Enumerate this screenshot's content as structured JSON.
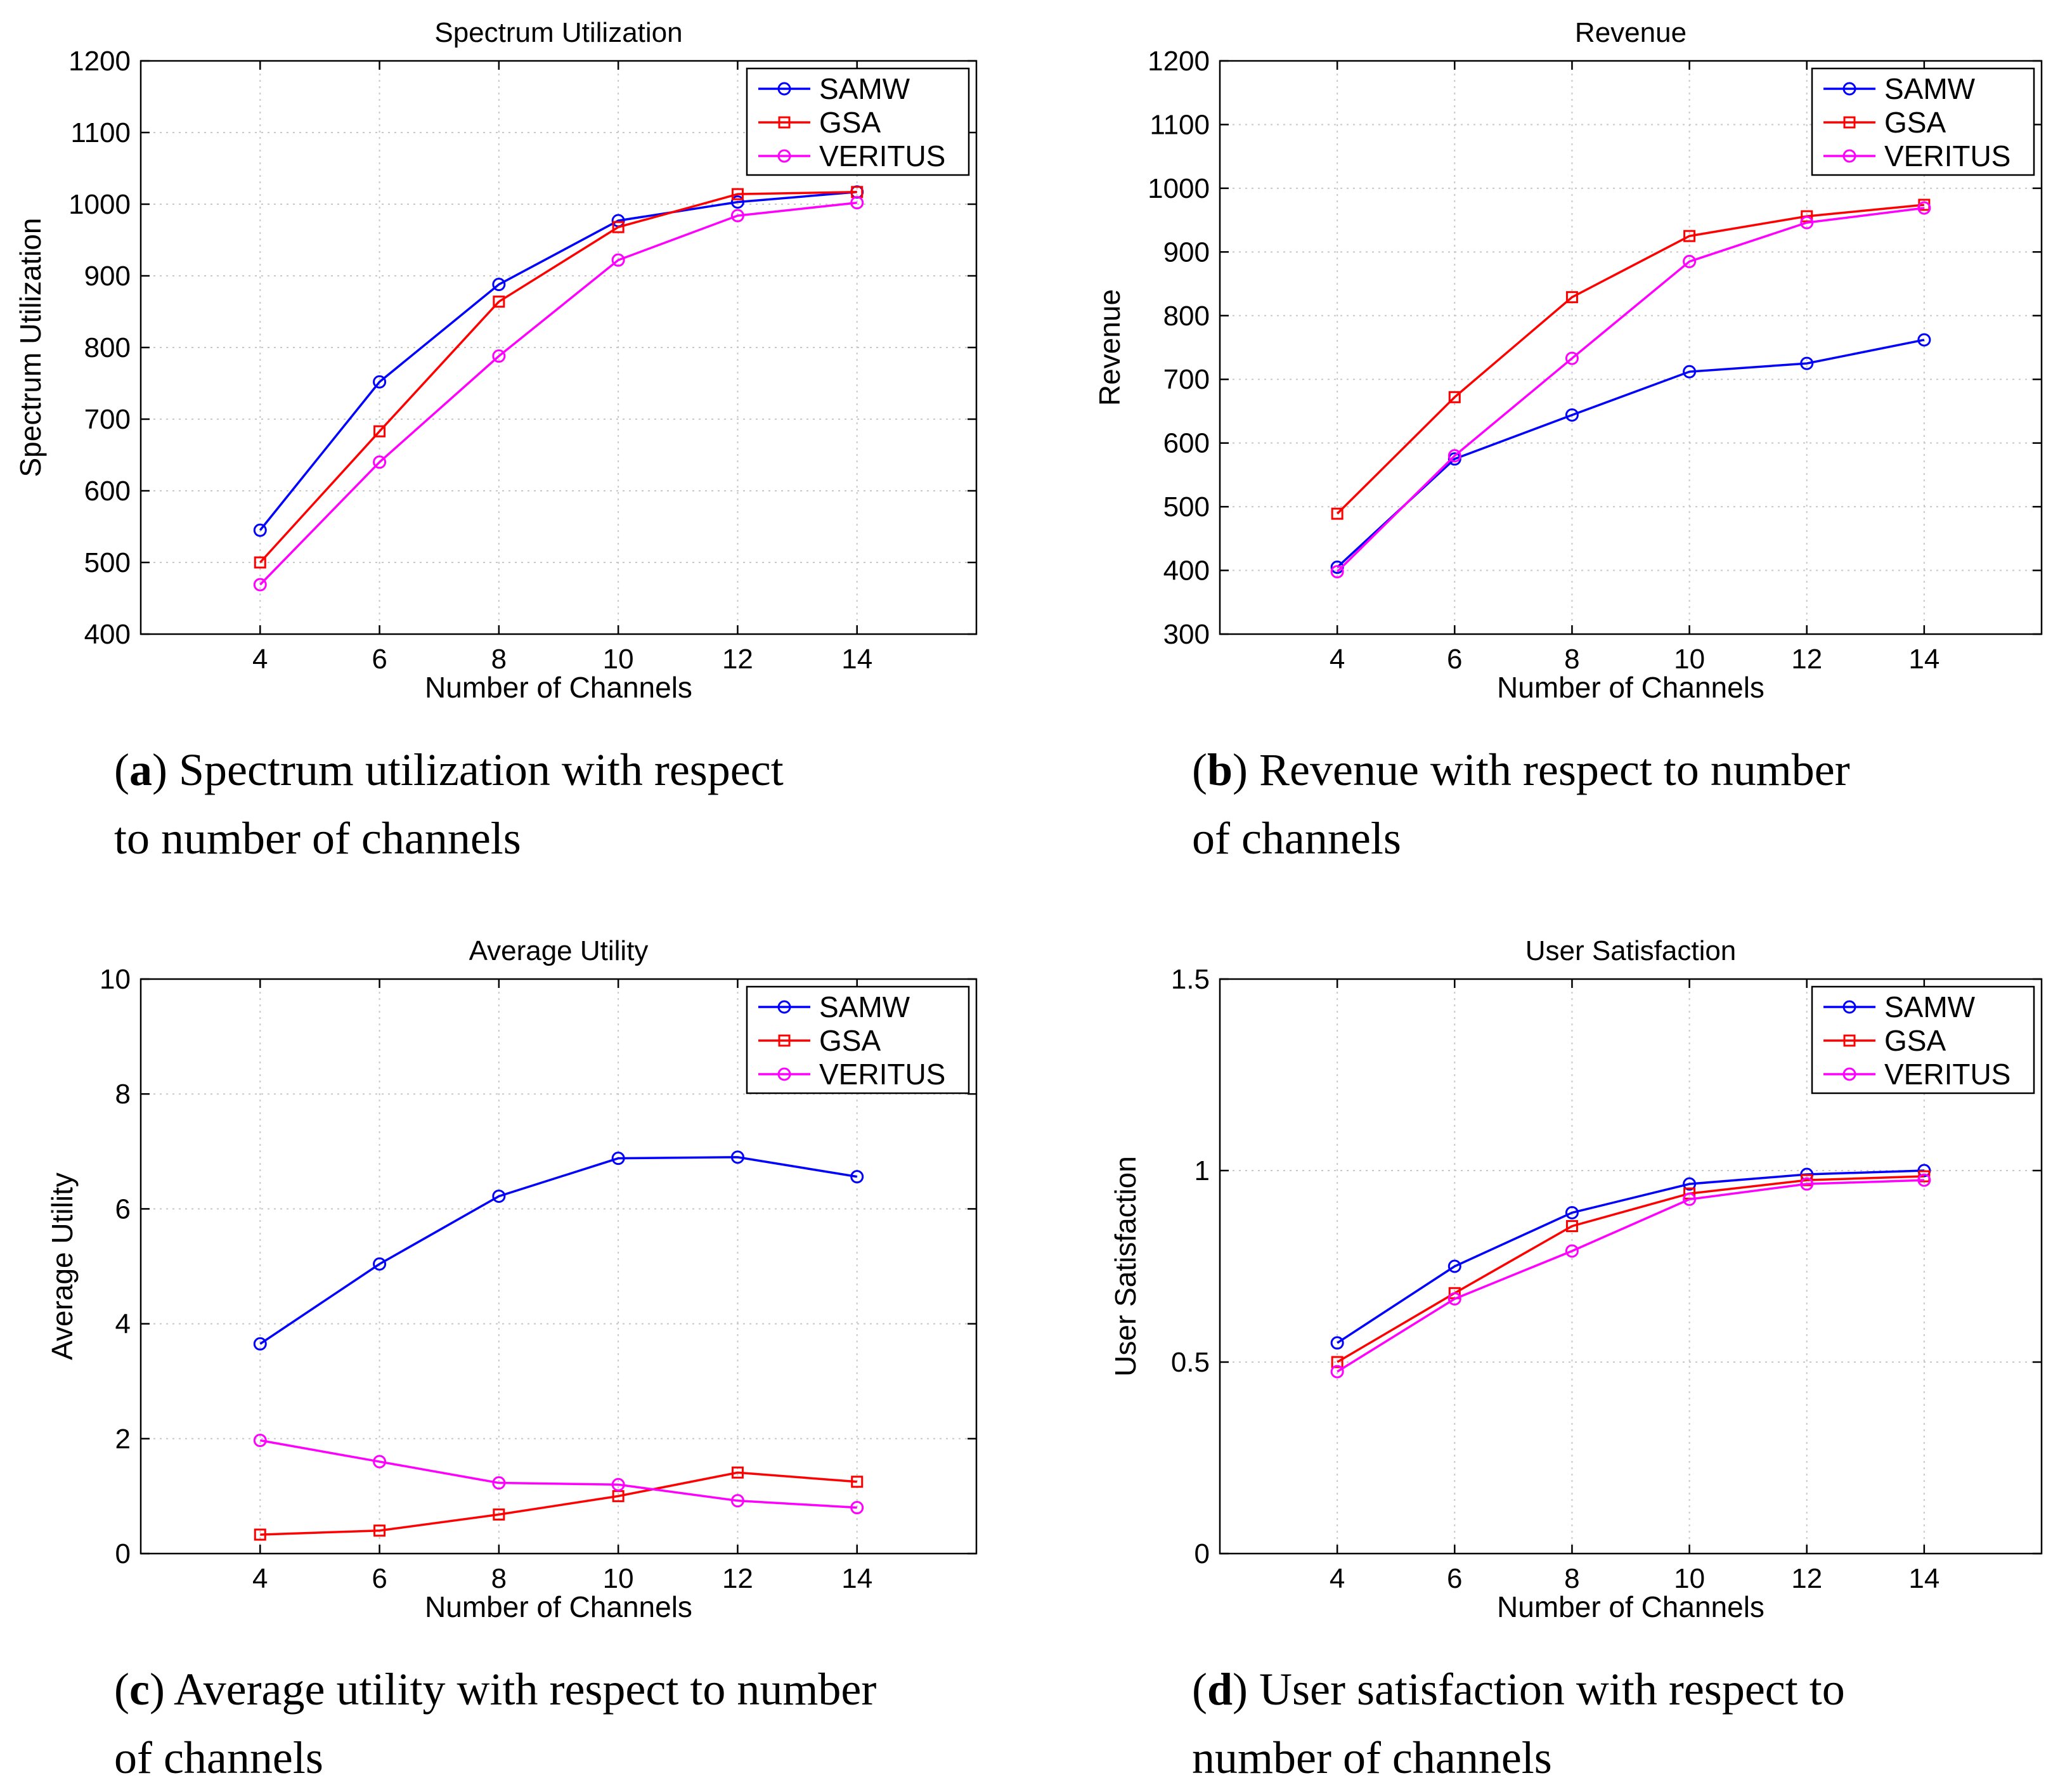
{
  "chart_data": [
    {
      "type": "line",
      "title": "Spectrum Utilization",
      "xlabel": "Number of Channels",
      "ylabel": "Spectrum Utilization",
      "x": [
        4,
        6,
        8,
        10,
        12,
        14
      ],
      "xlim": [
        2,
        16
      ],
      "ylim": [
        400,
        1200
      ],
      "xticks": [
        4,
        6,
        8,
        10,
        12,
        14
      ],
      "yticks": [
        400,
        500,
        600,
        700,
        800,
        900,
        1000,
        1100,
        1200
      ],
      "grid": true,
      "legend": "top-right",
      "series": [
        {
          "name": "SAMW",
          "color": "#0000ff",
          "marker": "circle",
          "values": [
            545,
            752,
            888,
            977,
            1003,
            1017
          ]
        },
        {
          "name": "GSA",
          "color": "#ff0000",
          "marker": "square",
          "values": [
            500,
            683,
            864,
            968,
            1014,
            1017
          ]
        },
        {
          "name": "VERITUS",
          "color": "#ff00ff",
          "marker": "circle",
          "values": [
            469,
            640,
            788,
            922,
            984,
            1002
          ]
        }
      ],
      "caption_letter": "a",
      "caption_line1": ") Spectrum utilization with respect",
      "caption_line2": "to number of channels"
    },
    {
      "type": "line",
      "title": "Revenue",
      "xlabel": "Number of Channels",
      "ylabel": "Revenue",
      "x": [
        4,
        6,
        8,
        10,
        12,
        14
      ],
      "xlim": [
        2,
        16
      ],
      "ylim": [
        300,
        1200
      ],
      "xticks": [
        4,
        6,
        8,
        10,
        12,
        14
      ],
      "yticks": [
        300,
        400,
        500,
        600,
        700,
        800,
        900,
        1000,
        1100,
        1200
      ],
      "grid": true,
      "legend": "top-right",
      "series": [
        {
          "name": "SAMW",
          "color": "#0000ff",
          "marker": "circle",
          "values": [
            405,
            575,
            644,
            712,
            725,
            762
          ]
        },
        {
          "name": "GSA",
          "color": "#ff0000",
          "marker": "square",
          "values": [
            489,
            672,
            829,
            925,
            956,
            974
          ]
        },
        {
          "name": "VERITUS",
          "color": "#ff00ff",
          "marker": "circle",
          "values": [
            398,
            580,
            733,
            885,
            946,
            969
          ]
        }
      ],
      "caption_letter": "b",
      "caption_line1": ") Revenue with respect to number",
      "caption_line2": "of channels"
    },
    {
      "type": "line",
      "title": "Average Utility",
      "xlabel": "Number of Channels",
      "ylabel": "Average Utility",
      "x": [
        4,
        6,
        8,
        10,
        12,
        14
      ],
      "xlim": [
        2,
        16
      ],
      "ylim": [
        0,
        10
      ],
      "xticks": [
        4,
        6,
        8,
        10,
        12,
        14
      ],
      "yticks": [
        0,
        2,
        4,
        6,
        8,
        10
      ],
      "grid": true,
      "legend": "top-right",
      "series": [
        {
          "name": "SAMW",
          "color": "#0000ff",
          "marker": "circle",
          "values": [
            3.65,
            5.04,
            6.22,
            6.88,
            6.9,
            6.56
          ]
        },
        {
          "name": "GSA",
          "color": "#ff0000",
          "marker": "square",
          "values": [
            0.33,
            0.4,
            0.68,
            1.0,
            1.41,
            1.25
          ]
        },
        {
          "name": "VERITUS",
          "color": "#ff00ff",
          "marker": "circle",
          "values": [
            1.97,
            1.6,
            1.23,
            1.2,
            0.92,
            0.8
          ]
        }
      ],
      "caption_letter": "c",
      "caption_line1": ") Average utility with respect to number",
      "caption_line2": "of channels"
    },
    {
      "type": "line",
      "title": "User Satisfaction",
      "xlabel": "Number of Channels",
      "ylabel": "User Satisfaction",
      "x": [
        4,
        6,
        8,
        10,
        12,
        14
      ],
      "xlim": [
        2,
        16
      ],
      "ylim": [
        0,
        1.5
      ],
      "xticks": [
        4,
        6,
        8,
        10,
        12,
        14
      ],
      "yticks": [
        0,
        0.5,
        1,
        1.5
      ],
      "grid": true,
      "legend": "top-right",
      "series": [
        {
          "name": "SAMW",
          "color": "#0000ff",
          "marker": "circle",
          "values": [
            0.55,
            0.75,
            0.89,
            0.965,
            0.99,
            1.0
          ]
        },
        {
          "name": "GSA",
          "color": "#ff0000",
          "marker": "square",
          "values": [
            0.5,
            0.68,
            0.855,
            0.94,
            0.975,
            0.985
          ]
        },
        {
          "name": "VERITUS",
          "color": "#ff00ff",
          "marker": "circle",
          "values": [
            0.475,
            0.665,
            0.79,
            0.925,
            0.965,
            0.975
          ]
        }
      ],
      "caption_letter": "d",
      "caption_line1": ") User satisfaction with respect to",
      "caption_line2": "number of channels"
    }
  ]
}
